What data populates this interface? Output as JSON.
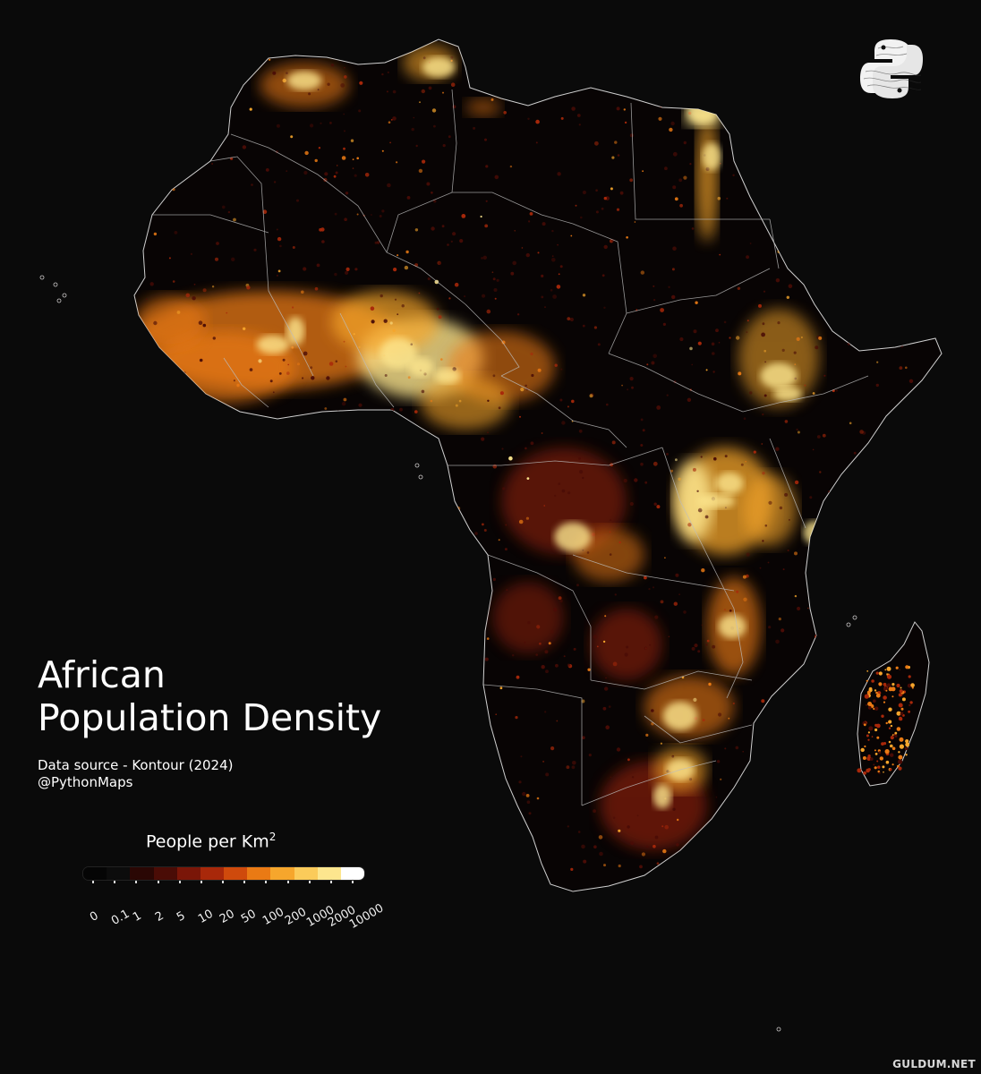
{
  "title_line1": "African",
  "title_line2": "Population Density",
  "source_line1": "Data source - Kontour (2024)",
  "source_line2": "@PythonMaps",
  "legend": {
    "title": "People per Km",
    "title_superscript": "2",
    "ticks": [
      "0",
      "0.1",
      "1",
      "2",
      "5",
      "10",
      "20",
      "50",
      "100",
      "200",
      "1000",
      "2000",
      "10000"
    ],
    "colors": [
      "#050505",
      "#0c0c0c",
      "#2a0704",
      "#4a0c06",
      "#7a1608",
      "#a8280a",
      "#cf4a0c",
      "#ea7a14",
      "#f6a62c",
      "#fbcb5a",
      "#fde68e",
      "#ffffff"
    ]
  },
  "watermark": "GULDUM.NET",
  "map": {
    "land_color": "#080404",
    "border_color": "#c8c8c8",
    "density_colors": [
      "#4a0c06",
      "#a8280a",
      "#ea7a14",
      "#f6a62c",
      "#fde68e"
    ]
  }
}
